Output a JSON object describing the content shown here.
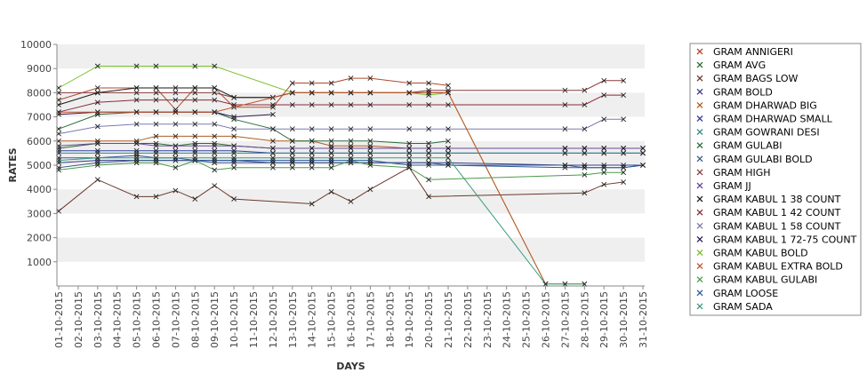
{
  "chart_data": {
    "type": "line",
    "xlabel": "DAYS",
    "ylabel": "RATES",
    "ylim": [
      0,
      10000
    ],
    "yticks": [
      1000,
      2000,
      3000,
      4000,
      5000,
      6000,
      7000,
      8000,
      9000,
      10000
    ],
    "grid": "alternating horizontal bands",
    "legend_position": "right",
    "categories": [
      "01-10-2015",
      "02-10-2015",
      "03-10-2015",
      "04-10-2015",
      "05-10-2015",
      "06-10-2015",
      "07-10-2015",
      "08-10-2015",
      "09-10-2015",
      "10-10-2015",
      "11-10-2015",
      "12-10-2015",
      "13-10-2015",
      "14-10-2015",
      "15-10-2015",
      "16-10-2015",
      "17-10-2015",
      "18-10-2015",
      "19-10-2015",
      "20-10-2015",
      "21-10-2015",
      "22-10-2015",
      "23-10-2015",
      "24-10-2015",
      "25-10-2015",
      "26-10-2015",
      "27-10-2015",
      "28-10-2015",
      "29-10-2015",
      "30-10-2015",
      "31-10-2015"
    ],
    "series": [
      {
        "name": "GRAM ANNIGERI",
        "color": "#b04a30",
        "values": [
          7700,
          null,
          8200,
          null,
          8200,
          8200,
          7300,
          8200,
          8200,
          7400,
          null,
          7400,
          8400,
          8400,
          8400,
          8600,
          8600,
          null,
          8400,
          8400,
          8300,
          null,
          null,
          null,
          null,
          null,
          null,
          null,
          null,
          null,
          null
        ]
      },
      {
        "name": "GRAM AVG",
        "color": "#2a6a2a",
        "values": [
          5700,
          null,
          5900,
          null,
          5900,
          5900,
          5800,
          5900,
          5900,
          5800,
          null,
          5700,
          5700,
          5700,
          5700,
          5700,
          5700,
          null,
          5700,
          5700,
          5700,
          null,
          null,
          null,
          null,
          null,
          5700,
          5700,
          5700,
          5700,
          5700
        ]
      },
      {
        "name": "GRAM BAGS LOW",
        "color": "#6b3a2a",
        "values": [
          3100,
          null,
          4400,
          null,
          3700,
          3700,
          3950,
          3600,
          4150,
          3600,
          null,
          null,
          null,
          3400,
          3900,
          3500,
          4000,
          null,
          4900,
          3700,
          null,
          null,
          null,
          null,
          null,
          null,
          null,
          3850,
          4200,
          4300,
          null
        ]
      },
      {
        "name": "GRAM BOLD",
        "color": "#3a3a8a",
        "values": [
          5100,
          null,
          5200,
          null,
          5200,
          5200,
          5200,
          5200,
          5200,
          5200,
          null,
          5100,
          5100,
          5100,
          5100,
          5100,
          5100,
          null,
          5100,
          5100,
          5100,
          null,
          null,
          null,
          null,
          null,
          5000,
          5000,
          5000,
          5000,
          5000
        ]
      },
      {
        "name": "GRAM DHARWAD BIG",
        "color": "#b05a20",
        "values": [
          6000,
          null,
          6000,
          null,
          6000,
          6200,
          6200,
          6200,
          6200,
          6200,
          null,
          6000,
          6000,
          6000,
          5800,
          5800,
          5800,
          null,
          5700,
          5700,
          5700,
          null,
          null,
          null,
          null,
          null,
          5700,
          5700,
          5700,
          5700,
          5700
        ]
      },
      {
        "name": "GRAM DHARWAD SMALL",
        "color": "#3a3aa0",
        "values": [
          5600,
          null,
          5600,
          null,
          5600,
          5600,
          5600,
          5600,
          5600,
          5600,
          null,
          5500,
          5500,
          5500,
          5500,
          5500,
          5500,
          null,
          5500,
          5500,
          5500,
          null,
          null,
          null,
          null,
          null,
          5500,
          5500,
          5500,
          5500,
          5500
        ]
      },
      {
        "name": "GRAM GOWRANI DESI",
        "color": "#2a8a8a",
        "values": [
          5500,
          null,
          5500,
          null,
          5500,
          5500,
          5500,
          5500,
          5500,
          5500,
          null,
          5500,
          5500,
          5500,
          5500,
          5500,
          5500,
          null,
          5500,
          5500,
          5500,
          null,
          null,
          null,
          null,
          null,
          5500,
          5500,
          5500,
          5500,
          5500
        ]
      },
      {
        "name": "GRAM GULABI",
        "color": "#2a6a3a",
        "values": [
          6500,
          null,
          7100,
          null,
          7200,
          7200,
          7200,
          7200,
          7200,
          6900,
          null,
          6500,
          6000,
          6000,
          6000,
          6000,
          6000,
          null,
          5900,
          5900,
          6000,
          null,
          null,
          null,
          null,
          null,
          null,
          null,
          null,
          null,
          null
        ]
      },
      {
        "name": "GRAM GULABI BOLD",
        "color": "#3a5a8a",
        "values": [
          4900,
          null,
          5100,
          null,
          5200,
          5200,
          5200,
          5200,
          5100,
          5100,
          null,
          5100,
          5100,
          5100,
          5100,
          5100,
          5100,
          null,
          5100,
          5100,
          5000,
          null,
          null,
          null,
          null,
          null,
          5000,
          4900,
          4900,
          4900,
          5000
        ]
      },
      {
        "name": "GRAM HIGH",
        "color": "#8a3a3a",
        "values": [
          8000,
          null,
          8000,
          null,
          8000,
          8000,
          8000,
          8000,
          8000,
          7800,
          null,
          7800,
          8000,
          8000,
          8000,
          8000,
          8000,
          null,
          8000,
          8100,
          8100,
          null,
          null,
          null,
          null,
          null,
          8100,
          8100,
          8500,
          8500,
          null
        ]
      },
      {
        "name": "GRAM JJ",
        "color": "#6a4a9a",
        "values": [
          5800,
          null,
          5900,
          null,
          5900,
          5800,
          5800,
          5800,
          5800,
          5800,
          null,
          5700,
          5700,
          5700,
          5700,
          5700,
          5700,
          null,
          5700,
          5700,
          5700,
          null,
          null,
          null,
          null,
          null,
          5700,
          5700,
          5700,
          5700,
          5700
        ]
      },
      {
        "name": "GRAM KABUL 1 38 COUNT",
        "color": "#1a1a1a",
        "values": [
          7500,
          null,
          8000,
          null,
          8200,
          8200,
          8200,
          8200,
          8200,
          7800,
          null,
          7800,
          8000,
          8000,
          8000,
          8000,
          8000,
          null,
          8000,
          8000,
          8000,
          null,
          null,
          null,
          null,
          null,
          null,
          null,
          null,
          null,
          null
        ]
      },
      {
        "name": "GRAM KABUL 1 42 COUNT",
        "color": "#8a2a3a",
        "values": [
          7200,
          null,
          7600,
          null,
          7700,
          7700,
          7700,
          7700,
          7700,
          7500,
          null,
          7500,
          7500,
          7500,
          7500,
          7500,
          7500,
          null,
          7500,
          7500,
          7500,
          null,
          null,
          null,
          null,
          null,
          7500,
          7500,
          7900,
          7900,
          null
        ]
      },
      {
        "name": "GRAM KABUL 1 58 COUNT",
        "color": "#7a7ab0",
        "values": [
          6300,
          null,
          6600,
          null,
          6700,
          6700,
          6700,
          6700,
          6700,
          6500,
          null,
          6500,
          6500,
          6500,
          6500,
          6500,
          6500,
          null,
          6500,
          6500,
          6500,
          null,
          null,
          null,
          null,
          null,
          6500,
          6500,
          6900,
          6900,
          null
        ]
      },
      {
        "name": "GRAM KABUL 1 72-75 COUNT",
        "color": "#2a1a5a",
        "values": [
          7100,
          null,
          7200,
          null,
          7200,
          7200,
          7200,
          7200,
          7200,
          7000,
          null,
          7100,
          null,
          null,
          null,
          null,
          null,
          null,
          null,
          null,
          null,
          null,
          null,
          null,
          null,
          null,
          null,
          null,
          null,
          null,
          null
        ]
      },
      {
        "name": "GRAM KABUL BOLD",
        "color": "#7ac02a",
        "values": [
          8200,
          null,
          9100,
          null,
          9100,
          9100,
          null,
          9100,
          9100,
          null,
          null,
          null,
          8000,
          8000,
          8000,
          8000,
          8000,
          null,
          8000,
          7900,
          8000,
          null,
          null,
          null,
          null,
          80,
          80,
          80,
          null,
          null,
          null
        ]
      },
      {
        "name": "GRAM KABUL EXTRA BOLD",
        "color": "#c0502a",
        "values": [
          7200,
          null,
          7200,
          null,
          7200,
          7200,
          7200,
          7200,
          7200,
          null,
          null,
          null,
          8000,
          8000,
          8000,
          8000,
          8000,
          null,
          8000,
          8000,
          8000,
          null,
          null,
          null,
          null,
          80,
          null,
          null,
          null,
          null,
          null
        ]
      },
      {
        "name": "GRAM KABUL GULABI",
        "color": "#4a9a4a",
        "values": [
          4800,
          null,
          5000,
          null,
          5100,
          5100,
          4900,
          5200,
          4800,
          4900,
          null,
          4900,
          4900,
          4900,
          4900,
          5200,
          5000,
          null,
          4900,
          4400,
          null,
          null,
          null,
          null,
          null,
          null,
          null,
          4600,
          4700,
          4700,
          null
        ]
      },
      {
        "name": "GRAM LOOSE",
        "color": "#2a5aa0",
        "values": [
          5300,
          null,
          5300,
          null,
          5400,
          5300,
          5300,
          5200,
          5200,
          5200,
          null,
          5200,
          5200,
          5200,
          5200,
          5200,
          5200,
          null,
          5000,
          5000,
          5000,
          null,
          null,
          null,
          null,
          null,
          4900,
          4900,
          4900,
          4900,
          5000
        ]
      },
      {
        "name": "GRAM SADA",
        "color": "#3a9a7a",
        "values": [
          5200,
          null,
          5300,
          null,
          5300,
          5300,
          5300,
          5300,
          5300,
          5300,
          null,
          5300,
          5300,
          5300,
          5300,
          5300,
          5300,
          null,
          5300,
          5300,
          5300,
          null,
          null,
          null,
          null,
          80,
          80,
          80,
          null,
          null,
          null
        ]
      }
    ]
  }
}
